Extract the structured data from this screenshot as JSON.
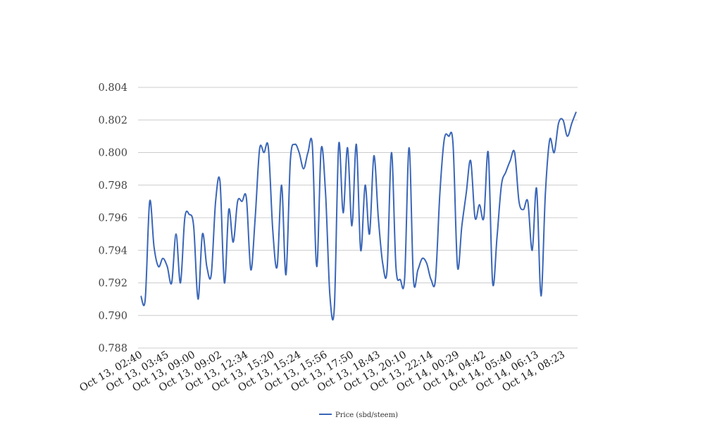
{
  "chart_data": {
    "type": "line",
    "title": "",
    "xlabel": "",
    "ylabel": "",
    "ylim": [
      0.788,
      0.804
    ],
    "yticks": [
      "0.788",
      "0.790",
      "0.792",
      "0.794",
      "0.796",
      "0.798",
      "0.800",
      "0.802",
      "0.804"
    ],
    "xtick_labels": [
      "Oct 13, 02:40",
      "Oct 13, 03:45",
      "Oct 13, 09:00",
      "Oct 13, 09:02",
      "Oct 13, 12:34",
      "Oct 13, 15:20",
      "Oct 13, 15:24",
      "Oct 13, 15:56",
      "Oct 13, 17:50",
      "Oct 13, 18:43",
      "Oct 13, 20:10",
      "Oct 13, 22:14",
      "Oct 14, 00:29",
      "Oct 14, 04:42",
      "Oct 14, 05:40",
      "Oct 14, 06:13",
      "Oct 14, 08:23"
    ],
    "grid": true,
    "legend_position": "bottom",
    "series": [
      {
        "name": "Price (sbd/steem)",
        "color": "#3a66b8",
        "values": [
          0.7912,
          0.791,
          0.797,
          0.7942,
          0.793,
          0.7935,
          0.793,
          0.792,
          0.795,
          0.792,
          0.796,
          0.7962,
          0.7955,
          0.791,
          0.795,
          0.793,
          0.7925,
          0.797,
          0.7982,
          0.792,
          0.7965,
          0.7945,
          0.797,
          0.797,
          0.7972,
          0.7928,
          0.796,
          0.8002,
          0.8,
          0.8003,
          0.7952,
          0.793,
          0.798,
          0.7925,
          0.7995,
          0.8005,
          0.8,
          0.799,
          0.8,
          0.8004,
          0.793,
          0.8002,
          0.7975,
          0.7912,
          0.7905,
          0.8005,
          0.7963,
          0.8003,
          0.7955,
          0.8005,
          0.794,
          0.798,
          0.795,
          0.7998,
          0.796,
          0.7932,
          0.7928,
          0.8,
          0.793,
          0.7922,
          0.7923,
          0.8003,
          0.7922,
          0.7928,
          0.7935,
          0.7932,
          0.7922,
          0.7922,
          0.7975,
          0.8008,
          0.801,
          0.8005,
          0.793,
          0.7955,
          0.7975,
          0.7995,
          0.796,
          0.7968,
          0.796,
          0.8,
          0.792,
          0.7948,
          0.798,
          0.7988,
          0.7995,
          0.8,
          0.797,
          0.7965,
          0.797,
          0.794,
          0.7978,
          0.7912,
          0.7975,
          0.8008,
          0.8,
          0.8018,
          0.802,
          0.801,
          0.8018,
          0.8025
        ]
      }
    ]
  }
}
